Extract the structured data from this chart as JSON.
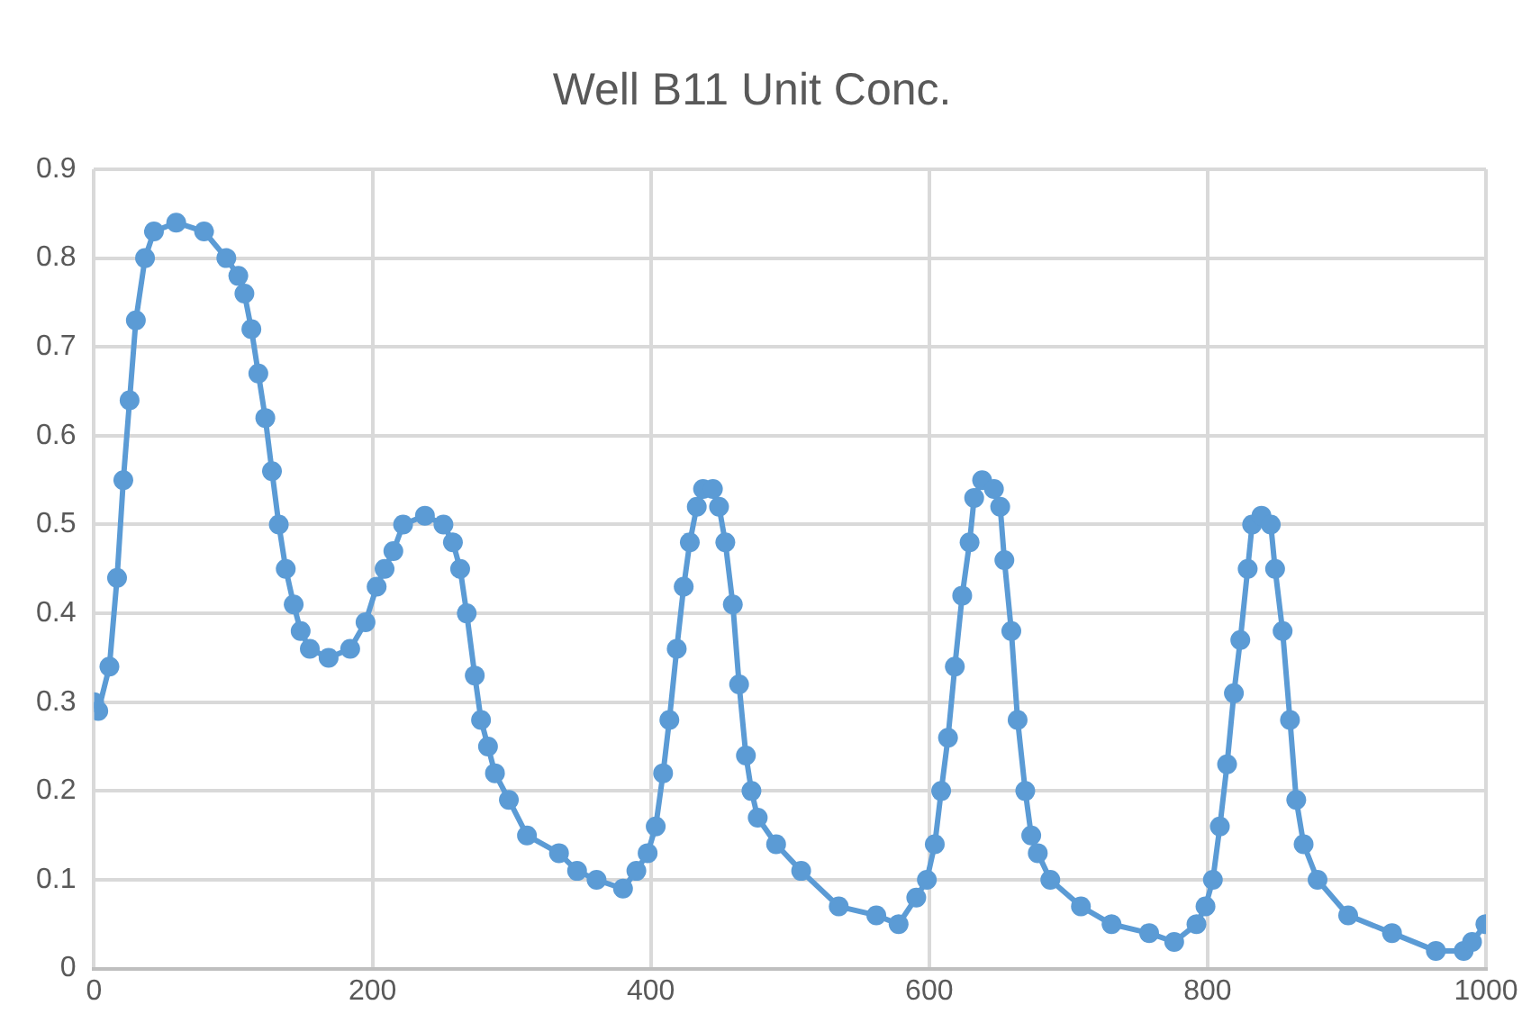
{
  "chart_data": {
    "type": "line",
    "title": "Well B11 Unit Conc.",
    "marker": "circle",
    "grid": true,
    "legend": false,
    "xlim": [
      0,
      1000
    ],
    "xticks": [
      0,
      200,
      400,
      600,
      800,
      1000
    ],
    "ylim": [
      0,
      0.9
    ],
    "yticks": [
      0,
      0.1,
      0.2,
      0.3,
      0.4,
      0.5,
      0.6,
      0.7,
      0.8,
      0.9
    ],
    "series": [
      {
        "color": "#5b9bd5",
        "x": [
          0,
          3,
          11,
          16.5,
          21,
          25.5,
          30,
          36.6,
          43,
          59,
          79,
          95,
          103.6,
          108,
          113,
          118,
          123,
          127.8,
          132.7,
          137.7,
          143.4,
          148.4,
          155,
          168.5,
          184,
          195,
          203,
          208.7,
          215,
          222,
          237.7,
          251,
          257.8,
          263,
          267.7,
          273.5,
          278,
          283,
          288,
          298,
          311,
          334,
          347,
          361,
          380,
          389.6,
          397.7,
          403.5,
          408.8,
          413.3,
          418.6,
          423.6,
          428,
          433,
          437.5,
          444.6,
          449,
          453.5,
          458.9,
          463.4,
          468.3,
          472.3,
          476.8,
          490,
          508,
          535,
          562,
          578,
          590.7,
          598.3,
          604,
          608.6,
          613.5,
          618.4,
          623.7,
          629,
          632.3,
          638,
          646.5,
          651,
          654,
          659,
          663.5,
          669,
          673.3,
          678,
          687,
          709,
          731,
          758,
          776,
          792,
          798.5,
          803.8,
          808.8,
          814,
          818.9,
          823.5,
          828.8,
          832,
          838.7,
          845.4,
          848.5,
          853.9,
          859.2,
          863.7,
          869,
          879,
          901,
          932.5,
          964,
          984,
          990,
          999.6
        ],
        "values": [
          0.3,
          0.29,
          0.34,
          0.44,
          0.55,
          0.64,
          0.73,
          0.8,
          0.83,
          0.84,
          0.83,
          0.8,
          0.78,
          0.76,
          0.72,
          0.67,
          0.62,
          0.56,
          0.5,
          0.45,
          0.41,
          0.38,
          0.36,
          0.35,
          0.36,
          0.39,
          0.43,
          0.45,
          0.47,
          0.5,
          0.51,
          0.5,
          0.48,
          0.45,
          0.4,
          0.33,
          0.28,
          0.25,
          0.22,
          0.19,
          0.15,
          0.13,
          0.11,
          0.1,
          0.09,
          0.11,
          0.13,
          0.16,
          0.22,
          0.28,
          0.36,
          0.43,
          0.48,
          0.52,
          0.54,
          0.54,
          0.52,
          0.48,
          0.41,
          0.32,
          0.24,
          0.2,
          0.17,
          0.14,
          0.11,
          0.07,
          0.06,
          0.05,
          0.08,
          0.1,
          0.14,
          0.2,
          0.26,
          0.34,
          0.42,
          0.48,
          0.53,
          0.55,
          0.54,
          0.52,
          0.46,
          0.38,
          0.28,
          0.2,
          0.15,
          0.13,
          0.1,
          0.07,
          0.05,
          0.04,
          0.03,
          0.05,
          0.07,
          0.1,
          0.16,
          0.23,
          0.31,
          0.37,
          0.45,
          0.5,
          0.51,
          0.5,
          0.45,
          0.38,
          0.28,
          0.19,
          0.14,
          0.1,
          0.06,
          0.04,
          0.02,
          0.02,
          0.03,
          0.05
        ]
      }
    ]
  }
}
